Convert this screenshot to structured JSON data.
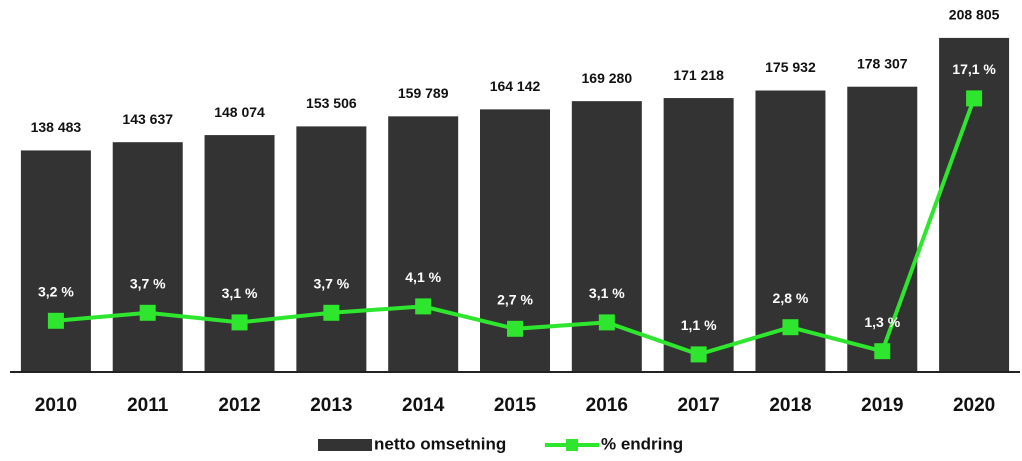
{
  "chart_data": {
    "type": "bar",
    "categories": [
      "2010",
      "2011",
      "2012",
      "2013",
      "2014",
      "2015",
      "2016",
      "2017",
      "2018",
      "2019",
      "2020"
    ],
    "series": [
      {
        "name": "netto omsetning",
        "type": "bar",
        "color": "#333333",
        "values": [
          138483,
          143637,
          148074,
          153506,
          159789,
          164142,
          169280,
          171218,
          175932,
          178307,
          208805
        ],
        "value_labels": [
          "138 483",
          "143 637",
          "148 074",
          "153 506",
          "159 789",
          "164 142",
          "169 280",
          "171 218",
          "175 932",
          "178 307",
          "208 805"
        ]
      },
      {
        "name": "% endring",
        "type": "line",
        "axis": "y2",
        "color": "#2ee62e",
        "values": [
          3.2,
          3.7,
          3.1,
          3.7,
          4.1,
          2.7,
          3.1,
          1.1,
          2.8,
          1.3,
          17.1
        ],
        "value_labels": [
          "3,2 %",
          "3,7 %",
          "3,1 %",
          "3,7 %",
          "4,1 %",
          "2,7 %",
          "3,1 %",
          "1,1 %",
          "2,8 %",
          "1,3 %",
          "17,1 %"
        ]
      }
    ],
    "ylim": [
      0,
      220000
    ],
    "y2lim": [
      0,
      22
    ],
    "legend": "bottom"
  }
}
